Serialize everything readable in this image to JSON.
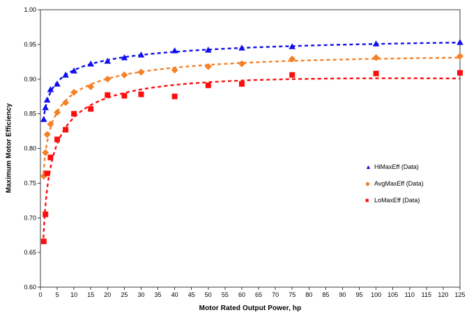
{
  "chart_data": {
    "type": "scatter",
    "title": "",
    "xlabel": "Motor Rated Output Power, hp",
    "ylabel": "Maximum Motor Efficiency",
    "xlim": [
      0,
      125
    ],
    "ylim": [
      0.6,
      1.0
    ],
    "x_tick_step": 5,
    "y_tick_step": 0.05,
    "grid": false,
    "legend_position": "middle-right",
    "trendline_style": "dashed logarithmic fit",
    "x": [
      1,
      1.5,
      2,
      3,
      5,
      7.5,
      10,
      15,
      20,
      25,
      30,
      40,
      50,
      60,
      75,
      100,
      125
    ],
    "series": [
      {
        "name": "HiMaxEff (Data)",
        "marker": "triangle",
        "color": "#0f0fee",
        "values": [
          0.842,
          0.859,
          0.87,
          0.885,
          0.893,
          0.906,
          0.912,
          0.922,
          0.926,
          0.931,
          0.935,
          0.941,
          0.942,
          0.945,
          0.947,
          0.951,
          0.953
        ]
      },
      {
        "name": "AvgMaxEff (Data)",
        "marker": "diamond",
        "color": "#f68026",
        "values": [
          0.76,
          0.794,
          0.82,
          0.835,
          0.852,
          0.866,
          0.881,
          0.889,
          0.9,
          0.906,
          0.91,
          0.913,
          0.918,
          0.922,
          0.929,
          0.931,
          0.933
        ]
      },
      {
        "name": "LoMaxEff (Data)",
        "marker": "square",
        "color": "#fd0d0d",
        "values": [
          0.666,
          0.705,
          0.764,
          0.787,
          0.813,
          0.827,
          0.85,
          0.857,
          0.877,
          0.876,
          0.878,
          0.875,
          0.891,
          0.893,
          0.906,
          0.908,
          0.909
        ]
      }
    ],
    "axis_color": "#3a3a3a",
    "text_color": "#000000"
  }
}
